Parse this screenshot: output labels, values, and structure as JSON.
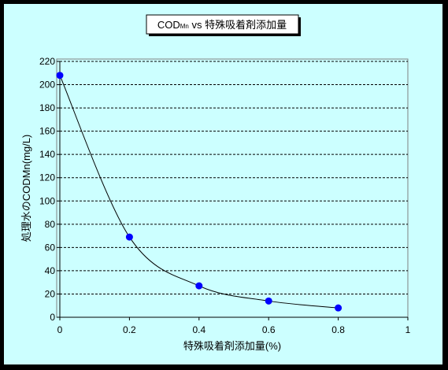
{
  "chart_data": {
    "type": "scatter",
    "title_main": "COD",
    "title_sub": "Mn",
    "title_rest": " vs  特殊吸着剤添加量",
    "xlabel": "特殊吸着剤添加量(%)",
    "ylabel": "処理水のCODMn(mg/L)",
    "xlim": [
      0,
      1
    ],
    "ylim": [
      0,
      220
    ],
    "x_ticks": [
      "0",
      "0.2",
      "0.4",
      "0.6",
      "0.8",
      "1"
    ],
    "y_ticks": [
      "0",
      "20",
      "40",
      "60",
      "80",
      "100",
      "120",
      "140",
      "160",
      "180",
      "200",
      "220"
    ],
    "grid": true,
    "smooth_line": true,
    "series": [
      {
        "x": [
          0,
          0.2,
          0.4,
          0.6,
          0.8
        ],
        "y": [
          208,
          69,
          27,
          14,
          8
        ]
      }
    ],
    "colors": {
      "background": "#ccffff",
      "plot_area": "#ccffff",
      "marker": "#0000ff",
      "line": "#000000",
      "frame": "#000000"
    }
  }
}
